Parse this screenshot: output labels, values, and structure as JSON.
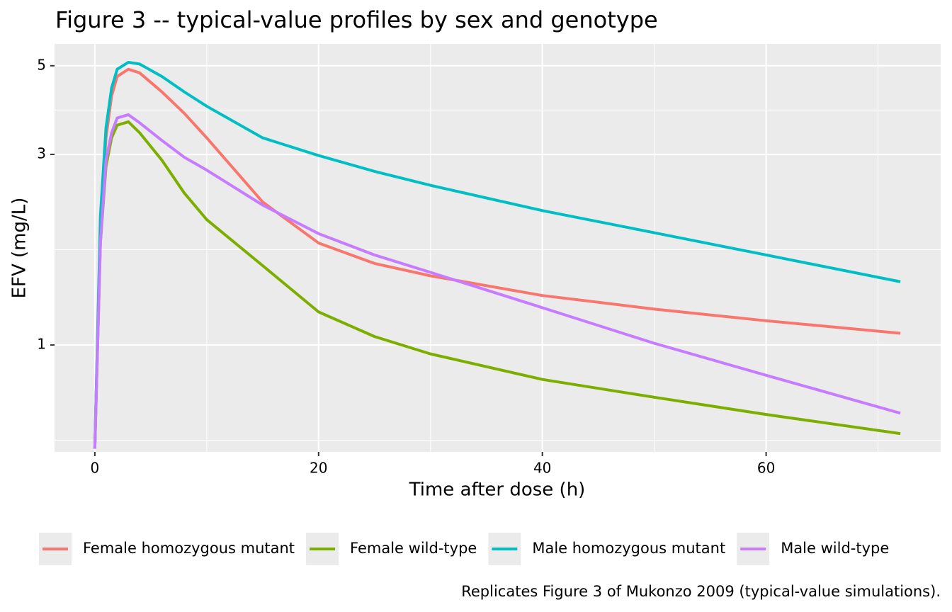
{
  "chart_data": {
    "type": "line",
    "title": "Figure 3 -- typical-value profiles by sex and genotype",
    "xlabel": "Time after dose (h)",
    "ylabel": "EFV (mg/L)",
    "caption": "Replicates Figure 3 of Mukonzo 2009 (typical-value simulations).",
    "x": [
      0,
      0.5,
      1,
      1.5,
      2,
      3,
      4,
      6,
      8,
      10,
      15,
      20,
      25,
      30,
      40,
      50,
      60,
      72
    ],
    "series": [
      {
        "name": "Female homozygous mutant",
        "color": "#f8766d",
        "values": [
          0.55,
          2.0,
          3.3,
          4.2,
          4.7,
          4.9,
          4.8,
          4.3,
          3.8,
          3.3,
          2.28,
          1.8,
          1.6,
          1.49,
          1.33,
          1.23,
          1.15,
          1.07
        ]
      },
      {
        "name": "Female wild-type",
        "color": "#7cae00",
        "values": [
          0.55,
          1.8,
          2.8,
          3.3,
          3.55,
          3.62,
          3.4,
          2.9,
          2.4,
          2.06,
          1.58,
          1.21,
          1.05,
          0.95,
          0.82,
          0.74,
          0.67,
          0.6
        ]
      },
      {
        "name": "Male homozygous mutant",
        "color": "#00bfc4",
        "values": [
          0.55,
          2.1,
          3.5,
          4.4,
          4.9,
          5.1,
          5.05,
          4.7,
          4.3,
          3.96,
          3.3,
          2.98,
          2.72,
          2.51,
          2.17,
          1.91,
          1.68,
          1.44
        ]
      },
      {
        "name": "Male wild-type",
        "color": "#c77cff",
        "values": [
          0.55,
          1.8,
          2.9,
          3.4,
          3.7,
          3.77,
          3.6,
          3.25,
          2.95,
          2.74,
          2.24,
          1.9,
          1.68,
          1.52,
          1.24,
          1.01,
          0.84,
          0.675
        ]
      }
    ],
    "xlim": [
      -3.6,
      75.6
    ],
    "xticks": [
      0,
      20,
      40,
      60
    ],
    "ylim": [
      0.54,
      5.67
    ],
    "yticks": [
      1,
      3,
      5
    ],
    "y_scale": "log",
    "grid": true,
    "legend": "bottom"
  }
}
